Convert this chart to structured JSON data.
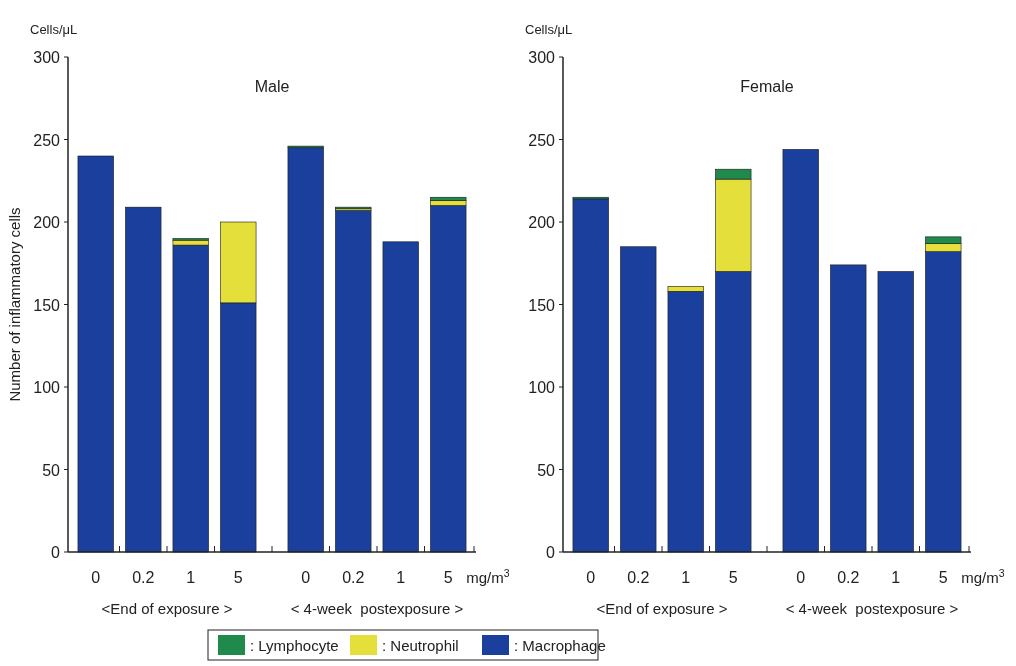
{
  "chart_data": [
    {
      "type": "bar",
      "title": "Male",
      "ylabel": "Number of inflammatory cells",
      "xlabel": "mg/m$^{3}$",
      "stacked": true,
      "legend": "bottom",
      "categories": [
        "0",
        "0.2",
        "1",
        "5",
        "0",
        "0.2",
        "1",
        "5"
      ],
      "ylim": [
        0,
        300
      ],
      "yticks": [
        0,
        50,
        100,
        150,
        200,
        250,
        300
      ],
      "annotations": [
        "Cells/μL",
        "<End of exposure >",
        "< 4-week  postexposure >"
      ],
      "series": [
        {
          "name": ": Macrophage",
          "color": "#1b3f9c",
          "values": [
            240,
            209,
            186,
            151,
            245,
            207,
            188,
            210
          ]
        },
        {
          "name": ": Neutrophil",
          "color": "#e4df3a",
          "values": [
            0,
            0,
            3,
            49,
            0,
            1,
            0,
            3
          ]
        },
        {
          "name": ": Lymphocyte",
          "color": "#1f8a4c",
          "values": [
            0,
            0,
            1,
            0,
            1,
            1,
            0,
            2
          ]
        }
      ]
    },
    {
      "type": "bar",
      "title": "Female",
      "xlabel": "mg/m$^{3}$",
      "stacked": true,
      "categories": [
        "0",
        "0.2",
        "1",
        "5",
        "0",
        "0.2",
        "1",
        "5"
      ],
      "ylim": [
        0,
        300
      ],
      "yticks": [
        0,
        50,
        100,
        150,
        200,
        250,
        300
      ],
      "annotations": [
        "Cells/μL",
        "<End of exposure >",
        "< 4-week  postexposure >"
      ],
      "series": [
        {
          "color": "#1b3f9c",
          "values": [
            214,
            185,
            158,
            170,
            244,
            174,
            170,
            182
          ]
        },
        {
          "color": "#e4df3a",
          "values": [
            0,
            0,
            3,
            56,
            0,
            0,
            0,
            5
          ]
        },
        {
          "color": "#1f8a4c",
          "values": [
            1,
            0,
            0,
            6,
            0,
            0,
            0,
            4
          ]
        }
      ]
    }
  ]
}
